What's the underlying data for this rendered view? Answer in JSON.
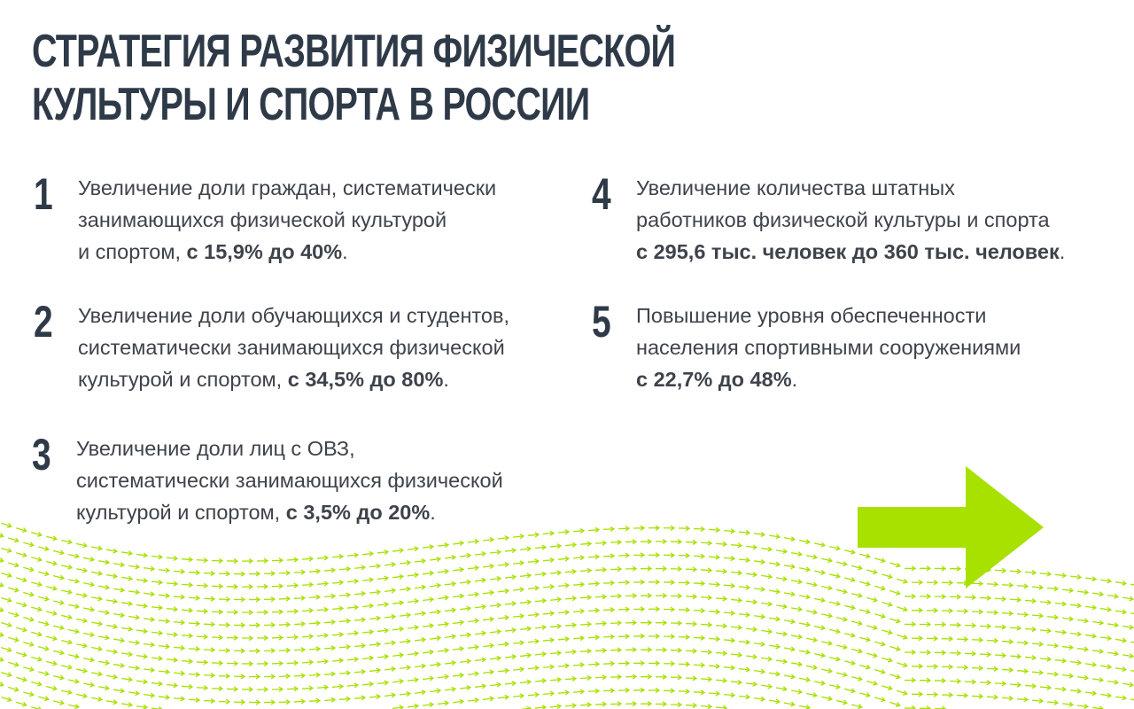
{
  "title": {
    "line1": "Стратегия развития физической",
    "line2": "культуры и спорта в России"
  },
  "items": [
    {
      "number": "1",
      "line1": "Увеличение доли граждан, систематически",
      "line2": "занимающихся физической культурой",
      "line3_prefix": "и спортом, ",
      "highlight": "с 15,9% до 40%",
      "suffix": "."
    },
    {
      "number": "2",
      "line1": "Увеличение доли обучающихся и студентов,",
      "line2": "систематически занимающихся физической",
      "line3_prefix": "культурой и спортом, ",
      "highlight": "с 34,5% до 80%",
      "suffix": "."
    },
    {
      "number": "3",
      "line1": "Увеличение доли лиц с ОВЗ,",
      "line2": "систематически занимающихся физической",
      "line3_prefix": "культурой и спортом, ",
      "highlight": "с 3,5% до 20%",
      "suffix": "."
    },
    {
      "number": "4",
      "line1": "Увеличение количества штатных",
      "line2": "работников физической культуры и спорта",
      "line3_prefix": "",
      "highlight": "с 295,6 тыс. человек до 360 тыс. человек",
      "suffix": "."
    },
    {
      "number": "5",
      "line1": "Повышение уровня обеспеченности",
      "line2": "населения спортивными сооружениями",
      "line3_prefix": "",
      "highlight": "с 22,7% до 48%",
      "suffix": "."
    }
  ],
  "colors": {
    "accent": "#a8e000",
    "heading": "#2f3a48",
    "text": "#3e434b"
  },
  "decor": {
    "big_arrow_icon": "arrow-right-icon",
    "wave_pattern_icon": "arrow-wave-pattern"
  }
}
